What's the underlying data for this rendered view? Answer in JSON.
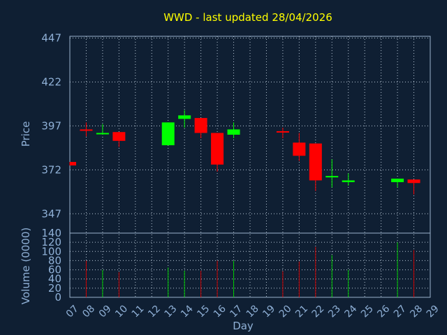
{
  "chart_data": {
    "type": "candlestick",
    "title": "WWD - last updated 28/04/2026",
    "price_panel": {
      "ylabel": "Price",
      "yticks": [
        347,
        372,
        397,
        422,
        447
      ],
      "ylim": [
        336,
        448
      ]
    },
    "volume_panel": {
      "ylabel": "Volume (0000)",
      "yticks": [
        0,
        20,
        40,
        60,
        80,
        100,
        120,
        140
      ],
      "ylim": [
        0,
        140
      ]
    },
    "xlabel": "Day",
    "x_tick_labels": [
      "07",
      "08",
      "09",
      "10",
      "11",
      "12",
      "13",
      "14",
      "15",
      "16",
      "17",
      "18",
      "19",
      "20",
      "21",
      "22",
      "23",
      "24",
      "25",
      "26",
      "27",
      "28",
      "29"
    ],
    "colors": {
      "up": "#00ff00",
      "down": "#ff0000",
      "volume_up": "#00cc00",
      "volume_down": "#cc0000"
    },
    "candles": [
      {
        "day": "07",
        "open": 376.5,
        "high": 376.5,
        "low": 374.5,
        "close": 374.5,
        "volume": 0
      },
      {
        "day": "08",
        "open": 395.0,
        "high": 399.0,
        "low": 391.0,
        "close": 394.5,
        "volume": 80
      },
      {
        "day": "09",
        "open": 392.5,
        "high": 398.0,
        "low": 392.0,
        "close": 393.0,
        "volume": 60
      },
      {
        "day": "10",
        "open": 393.5,
        "high": 393.5,
        "low": 385.0,
        "close": 388.5,
        "volume": 55
      },
      {
        "day": "13",
        "open": 386.0,
        "high": 399.0,
        "low": 386.0,
        "close": 399.0,
        "volume": 65
      },
      {
        "day": "14",
        "open": 401.0,
        "high": 406.0,
        "low": 396.0,
        "close": 403.0,
        "volume": 58
      },
      {
        "day": "15",
        "open": 401.5,
        "high": 401.5,
        "low": 390.0,
        "close": 393.0,
        "volume": 58
      },
      {
        "day": "16",
        "open": 393.0,
        "high": 393.0,
        "low": 371.0,
        "close": 375.0,
        "volume": 80
      },
      {
        "day": "17",
        "open": 392.0,
        "high": 399.0,
        "low": 390.0,
        "close": 395.0,
        "volume": 80
      },
      {
        "day": "20",
        "open": 394.0,
        "high": 396.0,
        "low": 390.0,
        "close": 393.5,
        "volume": 57
      },
      {
        "day": "21",
        "open": 387.5,
        "high": 393.0,
        "low": 377.0,
        "close": 380.0,
        "volume": 78
      },
      {
        "day": "22",
        "open": 387.0,
        "high": 387.0,
        "low": 360.0,
        "close": 366.0,
        "volume": 110
      },
      {
        "day": "23",
        "open": 368.5,
        "high": 378.0,
        "low": 362.0,
        "close": 368.5,
        "volume": 92
      },
      {
        "day": "24",
        "open": 365.0,
        "high": 370.0,
        "low": 363.0,
        "close": 366.0,
        "volume": 60
      },
      {
        "day": "27",
        "open": 365.0,
        "high": 367.0,
        "low": 362.0,
        "close": 367.0,
        "volume": 120
      },
      {
        "day": "28",
        "open": 366.5,
        "high": 366.5,
        "low": 358.0,
        "close": 364.5,
        "volume": 103
      }
    ]
  }
}
